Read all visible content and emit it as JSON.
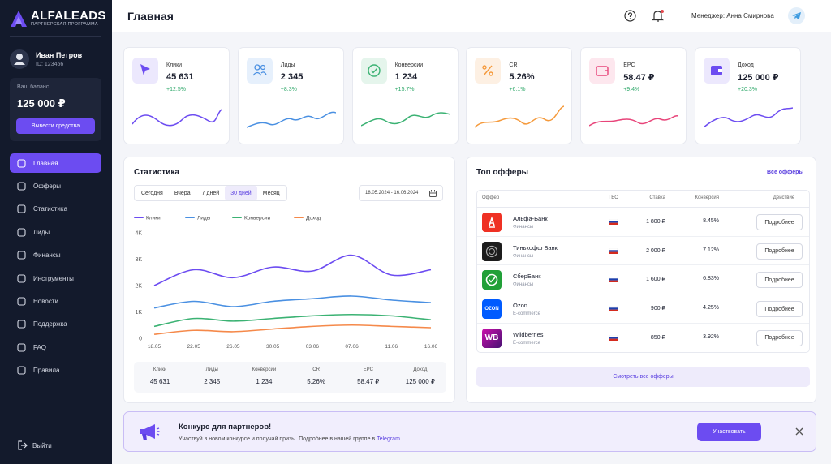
{
  "sidebar": {
    "logo": "ALFALEADS",
    "logo_subtitle": "ПАРТНЕРСКАЯ ПРОГРАММА",
    "user": {
      "name": "Иван Петров",
      "id": "ID: 123456"
    },
    "balance": {
      "label": "Ваш баланс",
      "amount": "125 000 ₽",
      "button": "Вывести средства"
    },
    "menu": [
      {
        "label": "Главная",
        "active": true
      },
      {
        "label": "Офферы"
      },
      {
        "label": "Статистика"
      },
      {
        "label": "Лиды"
      },
      {
        "label": "Финансы"
      },
      {
        "label": "Инструменты"
      },
      {
        "label": "Новости"
      },
      {
        "label": "Поддержка"
      },
      {
        "label": "FAQ"
      },
      {
        "label": "Правила"
      }
    ],
    "logout": "Выйти"
  },
  "header": {
    "title": "Главная",
    "manager": "Менеджер: Анна Смирнова"
  },
  "kpis": [
    {
      "label": "Клики",
      "value": "45 631",
      "change": "+12.5%"
    },
    {
      "label": "Лиды",
      "value": "2 345",
      "change": "+8.3%"
    },
    {
      "label": "Конверсии",
      "value": "1 234",
      "change": "+15.7%"
    },
    {
      "label": "CR",
      "value": "5.26%",
      "change": "+6.1%"
    },
    {
      "label": "EPC",
      "value": "58.47 ₽",
      "change": "+9.4%"
    },
    {
      "label": "Доход",
      "value": "125 000 ₽",
      "change": "+20.3%"
    }
  ],
  "statistics": {
    "title": "Статистика",
    "periods": [
      {
        "label": "Сегодня"
      },
      {
        "label": "Вчера"
      },
      {
        "label": "7 дней"
      },
      {
        "label": "30 дней",
        "active": true
      },
      {
        "label": "Месяц"
      }
    ],
    "date_range": "18.05.2024 - 16.06.2024",
    "summary": [
      {
        "label": "Клики",
        "value": "45 631"
      },
      {
        "label": "Лиды",
        "value": "2 345"
      },
      {
        "label": "Конверсии",
        "value": "1 234"
      },
      {
        "label": "CR",
        "value": "5.26%"
      },
      {
        "label": "EPC",
        "value": "58.47 ₽"
      },
      {
        "label": "Доход",
        "value": "125 000 ₽"
      }
    ]
  },
  "chart_data": {
    "type": "line",
    "categories": [
      "18.05",
      "22.05",
      "26.05",
      "30.05",
      "03.06",
      "07.06",
      "11.06",
      "16.06"
    ],
    "series": [
      {
        "name": "Клики",
        "color": "#6c4cf1",
        "values": [
          2000,
          2600,
          2300,
          2700,
          2550,
          3150,
          2400,
          2600
        ]
      },
      {
        "name": "Лиды",
        "color": "#4a90e2",
        "values": [
          1150,
          1400,
          1200,
          1400,
          1500,
          1600,
          1450,
          1350
        ]
      },
      {
        "name": "Конверсии",
        "color": "#3bb273",
        "values": [
          450,
          750,
          650,
          750,
          850,
          900,
          850,
          700
        ]
      },
      {
        "name": "Доход",
        "color": "#f5894a",
        "values": [
          150,
          300,
          250,
          350,
          450,
          500,
          450,
          400
        ]
      }
    ],
    "ylim": [
      0,
      4000
    ],
    "yticks": [
      0,
      {
        "value": 1000,
        "label": "1K"
      },
      {
        "value": 2000,
        "label": "2K"
      },
      {
        "value": 3000,
        "label": "3K"
      },
      {
        "value": 4000,
        "label": "4K"
      }
    ],
    "grid": false
  },
  "top_offers": {
    "title": "Топ офферы",
    "all_link": "Все офферы",
    "columns": [
      "Оффер",
      "ГЕО",
      "Ставка",
      "Конверсия",
      "Действие"
    ],
    "rows": [
      {
        "name": "Альфа-Банк",
        "category": "Финансы",
        "rate": "1 800 ₽",
        "conversion": "8.45%",
        "action": "Подробнее"
      },
      {
        "name": "Тинькофф Банк",
        "category": "Финансы",
        "rate": "2 000 ₽",
        "conversion": "7.12%",
        "action": "Подробнее"
      },
      {
        "name": "СберБанк",
        "category": "Финансы",
        "rate": "1 600 ₽",
        "conversion": "6.83%",
        "action": "Подробнее"
      },
      {
        "logo": "OZON",
        "name": "Ozon",
        "category": "E-commerce",
        "rate": "900 ₽",
        "conversion": "4.25%",
        "action": "Подробнее"
      },
      {
        "logo": "WB",
        "name": "Wildberries",
        "category": "E-commerce",
        "rate": "850 ₽",
        "conversion": "3.92%",
        "action": "Подробнее"
      }
    ],
    "view_all": "Смотреть все офферы"
  },
  "banner": {
    "title": "Конкурс для партнеров!",
    "text": "Участвуй в новом конкурсе и получай призы. Подробнее в нашей группе в",
    "link": "Telegram",
    "text_end": ".",
    "button": "Участвовать"
  }
}
